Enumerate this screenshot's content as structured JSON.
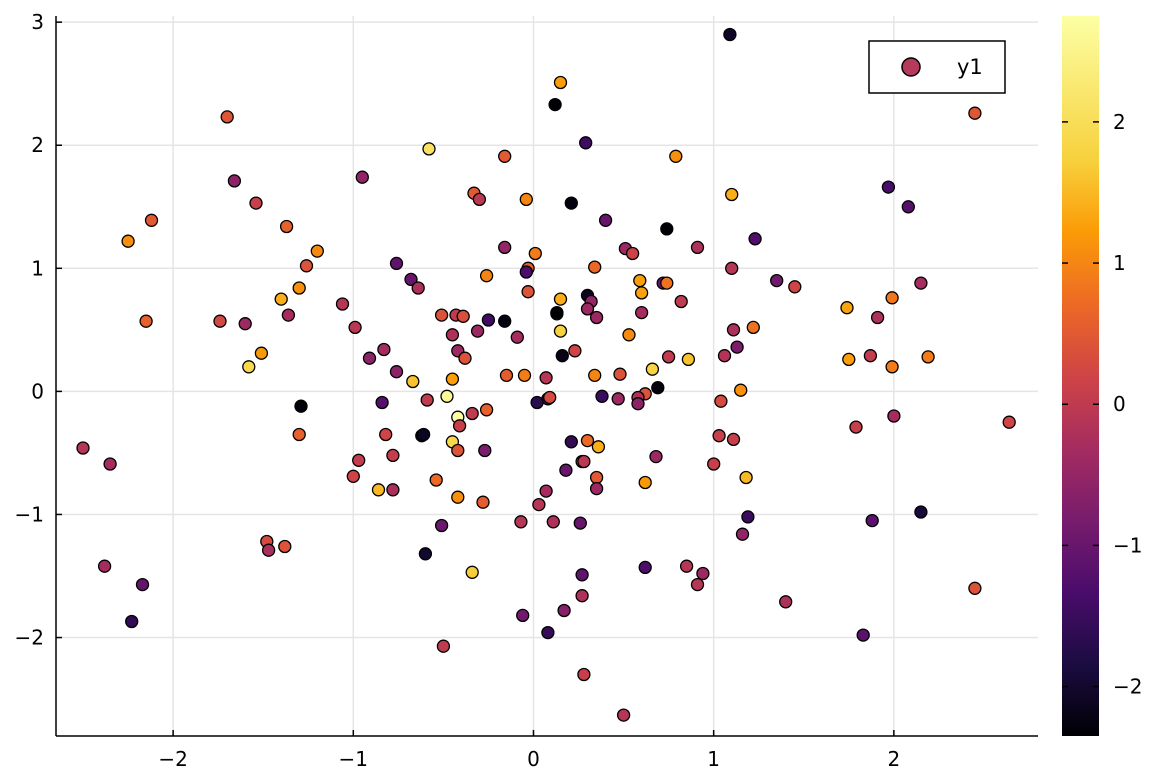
{
  "chart_data": {
    "type": "scatter",
    "title": "",
    "xlabel": "",
    "ylabel": "",
    "xlim": [
      -2.65,
      2.8
    ],
    "ylim": [
      -2.8,
      3.05
    ],
    "xticks": [
      -2,
      -1,
      0,
      1,
      2
    ],
    "yticks": [
      -2,
      -1,
      0,
      1,
      2,
      3
    ],
    "xtick_labels": [
      "−2",
      "−1",
      "0",
      "1",
      "2"
    ],
    "ytick_labels": [
      "−2",
      "−1",
      "0",
      "1",
      "2",
      "3"
    ],
    "grid": true,
    "legend": {
      "position": "top-right",
      "entries": [
        {
          "label": "y1",
          "color": "#b63a5b"
        }
      ]
    },
    "colorbar": {
      "colormap": "inferno",
      "range": [
        -2.35,
        2.75
      ],
      "ticks": [
        -2,
        -1,
        0,
        1,
        2
      ],
      "tick_labels": [
        "−2",
        "−1",
        "0",
        "1",
        "2"
      ]
    },
    "series": [
      {
        "x": [
          1.09,
          0.15,
          0.12,
          -1.7,
          2.45,
          0.29,
          0.79,
          -0.58,
          -0.16,
          -0.95,
          -1.66,
          1.97,
          -0.33,
          -0.3,
          -1.54,
          1.1,
          2.08,
          0.21,
          -0.04,
          0.4,
          -2.12,
          -1.37,
          0.74,
          -2.25,
          1.23,
          -0.16,
          0.91,
          0.01,
          0.51,
          0.55,
          -1.2,
          -0.76,
          -0.03,
          -1.26,
          1.1,
          0.34,
          -0.04,
          1.35,
          -0.68,
          -0.64,
          1.45,
          -1.3,
          0.3,
          -1.4,
          0.6,
          0.72,
          0.82,
          0.59,
          0.15,
          0.32,
          1.91,
          -0.26,
          -1.06,
          0.13,
          -0.16,
          -0.43,
          0.15,
          1.74,
          -2.15,
          -1.74,
          -1.6,
          0.3,
          0.35,
          -1.36,
          2.15,
          1.99,
          1.11,
          -0.25,
          1.22,
          -0.51,
          0.6,
          -0.42,
          -0.99,
          -0.31,
          0.16,
          -0.09,
          0.53,
          -0.83,
          1.13,
          -0.39,
          0.23,
          1.87,
          -0.91,
          -0.45,
          0.75,
          0.86,
          1.75,
          2.19,
          1.06,
          -0.05,
          0.66,
          -1.51,
          0.34,
          0.48,
          -1.58,
          -0.45,
          -0.67,
          -0.76,
          0.69,
          1.15,
          -0.38,
          -0.03,
          0.13,
          -0.15,
          0.74,
          1.99,
          -0.48,
          0.38,
          0.62,
          -0.84,
          0.58,
          -0.42,
          0.08,
          -0.59,
          1.04,
          -1.29,
          -0.34,
          -0.26,
          0.09,
          0.02,
          0.47,
          0.58,
          -0.45,
          -0.41,
          -0.62,
          0.3,
          0.68,
          2.0,
          1.79,
          1.11,
          0.21,
          0.36,
          -0.82,
          -1.3,
          -0.61,
          1.03,
          -2.5,
          -0.78,
          -2.35,
          0.35,
          -0.54,
          0.35,
          -0.27,
          1.0,
          1.18,
          -1.0,
          0.18,
          -0.97,
          -0.28,
          0.62,
          2.15,
          0.03,
          0.07,
          -0.86,
          -0.78,
          0.27,
          0.28,
          1.19,
          -1.38,
          -0.42,
          0.11,
          -0.51,
          1.88,
          -1.48,
          -0.07,
          0.26,
          -0.34,
          1.16,
          0.62,
          0.85,
          -1.47,
          -0.6,
          0.94,
          0.91,
          -2.38,
          0.27,
          -2.17,
          1.4,
          -0.06,
          0.17,
          0.27,
          2.45,
          1.83,
          0.08,
          -2.23,
          -0.5,
          0.28,
          0.5,
          -0.42,
          2.64,
          0.07
        ],
        "y": [
          2.9,
          2.51,
          2.33,
          2.23,
          2.26,
          2.02,
          1.91,
          1.97,
          1.91,
          1.74,
          1.71,
          1.66,
          1.61,
          1.56,
          1.53,
          1.6,
          1.5,
          1.53,
          1.56,
          1.39,
          1.39,
          1.34,
          1.32,
          1.22,
          1.24,
          1.17,
          1.17,
          1.12,
          1.16,
          1.12,
          1.14,
          1.04,
          1.0,
          1.02,
          1.0,
          1.01,
          0.97,
          0.9,
          0.91,
          0.84,
          0.85,
          0.84,
          0.78,
          0.75,
          0.8,
          0.88,
          0.73,
          0.9,
          0.75,
          0.73,
          0.6,
          0.94,
          0.71,
          0.63,
          0.57,
          0.62,
          0.49,
          0.68,
          0.57,
          0.57,
          0.55,
          0.67,
          0.6,
          0.62,
          0.88,
          0.76,
          0.5,
          0.58,
          0.52,
          0.62,
          0.64,
          0.33,
          0.52,
          0.49,
          0.29,
          0.44,
          0.46,
          0.34,
          0.36,
          0.61,
          0.33,
          0.29,
          0.27,
          0.46,
          0.28,
          0.26,
          0.26,
          0.28,
          0.29,
          0.13,
          0.18,
          0.31,
          0.13,
          0.14,
          0.2,
          0.1,
          0.08,
          0.16,
          0.03,
          0.01,
          0.27,
          0.81,
          0.64,
          0.13,
          0.88,
          0.2,
          -0.04,
          -0.04,
          -0.02,
          -0.09,
          -0.05,
          -0.21,
          -0.06,
          -0.07,
          -0.08,
          -0.12,
          -0.18,
          -0.15,
          -0.05,
          -0.09,
          -0.06,
          -0.1,
          -0.41,
          -0.28,
          -0.36,
          -0.4,
          -0.53,
          -0.2,
          -0.29,
          -0.39,
          -0.41,
          -0.45,
          -0.35,
          -0.35,
          -0.35,
          -0.36,
          -0.46,
          -0.52,
          -0.59,
          -0.7,
          -0.72,
          -0.79,
          -0.48,
          -0.59,
          -0.7,
          -0.69,
          -0.64,
          -0.56,
          -0.9,
          -0.74,
          -0.98,
          -0.92,
          -0.81,
          -0.8,
          -0.8,
          -0.57,
          -0.57,
          -1.02,
          -1.26,
          -0.86,
          -1.06,
          -1.09,
          -1.05,
          -1.22,
          -1.06,
          -1.07,
          -1.47,
          -1.16,
          -1.43,
          -1.42,
          -1.29,
          -1.32,
          -1.48,
          -1.57,
          -1.42,
          -1.49,
          -1.57,
          -1.71,
          -1.82,
          -1.78,
          -1.66,
          -1.6,
          -1.98,
          -1.96,
          -1.87,
          -2.07,
          -2.3,
          -2.63,
          -0.48,
          -0.25,
          0.11
        ],
        "color_values": [
          -2.05,
          1.25,
          -2.35,
          0.45,
          0.45,
          -1.45,
          1.1,
          2.1,
          0.5,
          -0.55,
          -0.6,
          -1.35,
          0.5,
          -0.05,
          0.1,
          1.4,
          -1.2,
          -2.25,
          1.0,
          -1.0,
          0.5,
          0.6,
          -2.35,
          1.1,
          -1.25,
          -0.5,
          -0.2,
          0.9,
          -0.4,
          0.15,
          1.05,
          -1.1,
          0.6,
          0.4,
          -0.1,
          0.7,
          -1.3,
          -0.9,
          -1.0,
          -0.2,
          0.2,
          1.1,
          -2.1,
          1.4,
          1.3,
          -1.0,
          0.0,
          1.25,
          1.4,
          -0.5,
          -0.2,
          1.0,
          -0.1,
          1.2,
          -2.25,
          0.0,
          1.75,
          1.3,
          0.6,
          0.25,
          -0.4,
          -0.4,
          -0.4,
          -0.3,
          -0.3,
          0.85,
          -0.2,
          -1.45,
          0.8,
          0.4,
          -0.3,
          -0.4,
          -0.05,
          -0.4,
          -2.2,
          -0.3,
          1.05,
          -0.3,
          -0.8,
          0.35,
          0.2,
          0.05,
          -0.6,
          -0.2,
          0.0,
          1.6,
          1.25,
          0.9,
          -0.15,
          0.9,
          1.8,
          1.2,
          1.0,
          0.4,
          1.9,
          1.25,
          1.6,
          -0.6,
          -2.3,
          1.1,
          0.4,
          0.4,
          -2.35,
          0.55,
          0.8,
          0.9,
          2.6,
          -1.5,
          0.4,
          -1.2,
          -0.2,
          2.75,
          -1.4,
          0.0,
          0.3,
          -2.3,
          0.0,
          0.6,
          0.3,
          -1.7,
          -0.4,
          -0.6,
          1.9,
          0.1,
          -2.2,
          0.7,
          -0.4,
          -0.3,
          0.1,
          0.1,
          -1.6,
          1.4,
          0.2,
          0.6,
          -2.1,
          0.1,
          -0.1,
          0.05,
          -0.3,
          0.5,
          0.7,
          -0.4,
          -0.8,
          0.1,
          1.5,
          0.2,
          -1.0,
          0.05,
          0.55,
          1.2,
          -1.9,
          -0.1,
          -0.3,
          1.5,
          -0.25,
          0.2,
          -0.05,
          -1.5,
          0.4,
          1.1,
          -0.2,
          -0.95,
          -1.15,
          0.3,
          -0.1,
          -1.0,
          1.7,
          -0.55,
          -1.3,
          -0.1,
          -0.25,
          -2.0,
          -0.4,
          -0.1,
          -0.3,
          -1.1,
          -1.05,
          -0.2,
          -0.9,
          -0.65,
          -0.2,
          0.4,
          -1.15,
          -1.55,
          -1.6,
          0.0,
          0.1,
          -0.1,
          0.4,
          0.2,
          -0.1,
          -0.65,
          0.5,
          -0.1,
          2.6,
          1.0,
          1.15
        ]
      }
    ]
  }
}
